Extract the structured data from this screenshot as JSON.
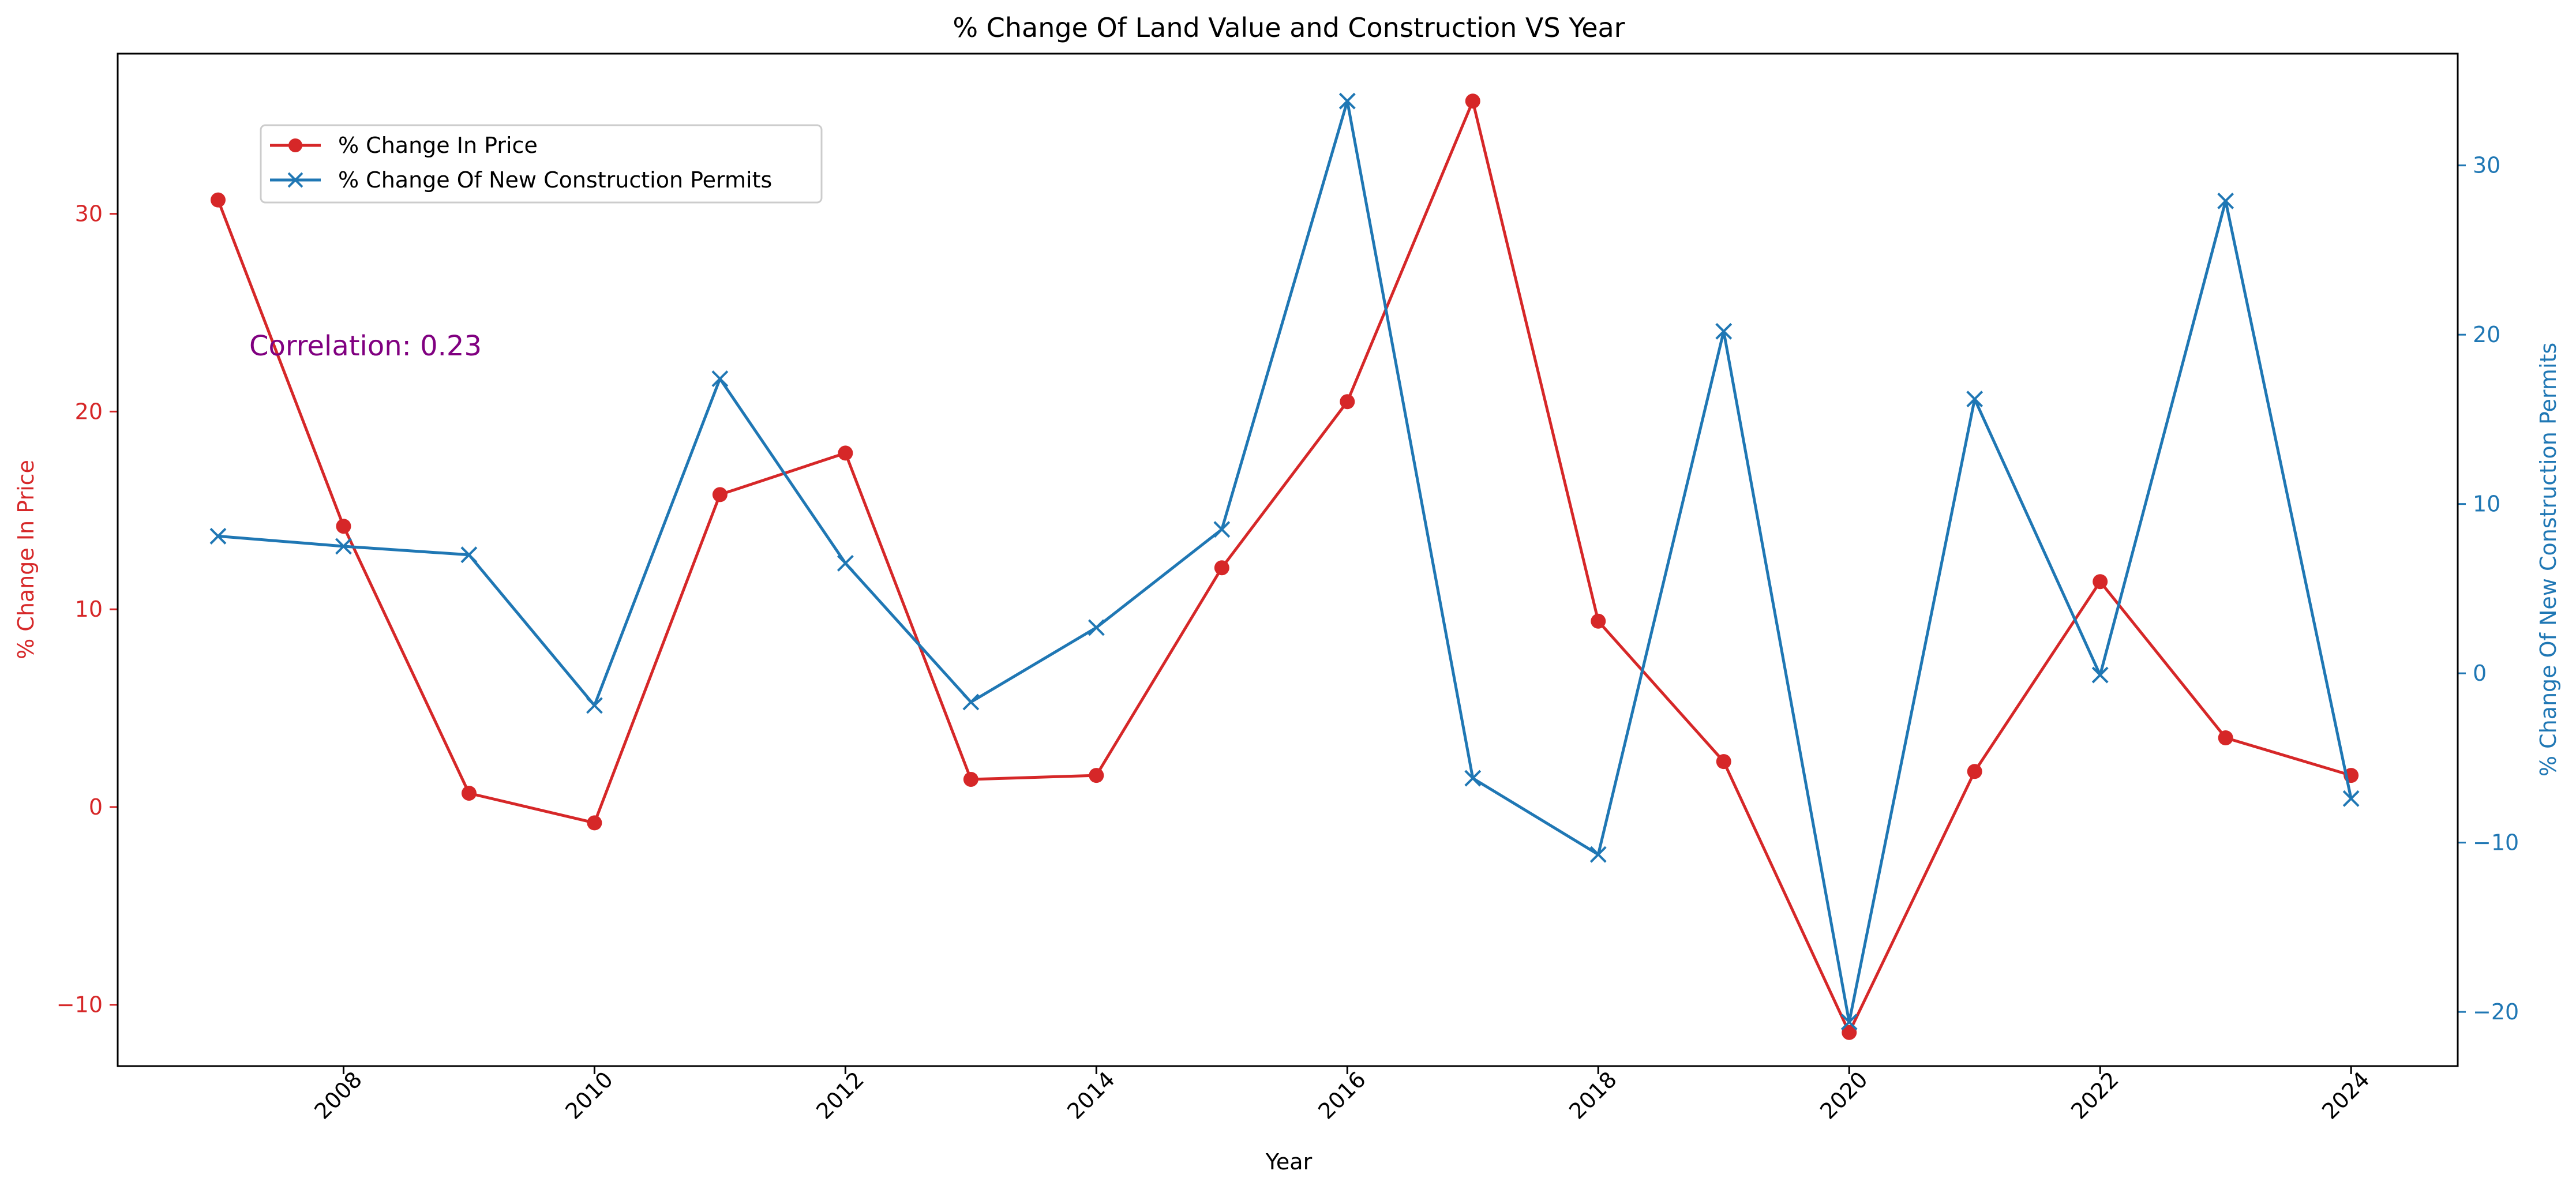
{
  "chart_data": {
    "type": "line",
    "title": "% Change Of Land Value and Construction VS Year",
    "xlabel": "Year",
    "ylabel_left": "% Change In Price",
    "ylabel_right": "% Change Of New Construction Permits",
    "x": [
      2007,
      2008,
      2009,
      2010,
      2011,
      2012,
      2013,
      2014,
      2015,
      2016,
      2017,
      2018,
      2019,
      2020,
      2021,
      2022,
      2023,
      2024
    ],
    "x_ticks": [
      2008,
      2010,
      2012,
      2014,
      2016,
      2018,
      2020,
      2022,
      2024
    ],
    "xlim": [
      2006.2,
      2024.85
    ],
    "ylim_left": [
      -13.1,
      38.1
    ],
    "yticks_left": [
      -10,
      0,
      10,
      20,
      30
    ],
    "ylim_right": [
      -23.2,
      36.6
    ],
    "yticks_right": [
      -20,
      -10,
      0,
      10,
      20,
      30
    ],
    "series": [
      {
        "name": "% Change In Price",
        "axis": "left",
        "color": "#d62728",
        "marker": "circle",
        "values": [
          30.7,
          14.2,
          0.7,
          -0.8,
          15.8,
          17.9,
          1.4,
          1.6,
          12.1,
          20.5,
          35.7,
          9.4,
          2.3,
          -11.4,
          1.8,
          11.4,
          3.5,
          1.6
        ]
      },
      {
        "name": "% Change Of New Construction Permits",
        "axis": "right",
        "color": "#1f77b4",
        "marker": "x",
        "values": [
          8.1,
          7.5,
          7.0,
          -1.9,
          17.4,
          6.5,
          -1.7,
          2.7,
          8.5,
          33.8,
          -6.2,
          -10.7,
          20.2,
          -20.6,
          16.2,
          -0.1,
          27.9,
          -7.4
        ]
      }
    ],
    "annotations": [
      {
        "text": "Correlation: 0.23",
        "color": "#800080"
      }
    ],
    "legend": "top-left",
    "grid": false
  }
}
